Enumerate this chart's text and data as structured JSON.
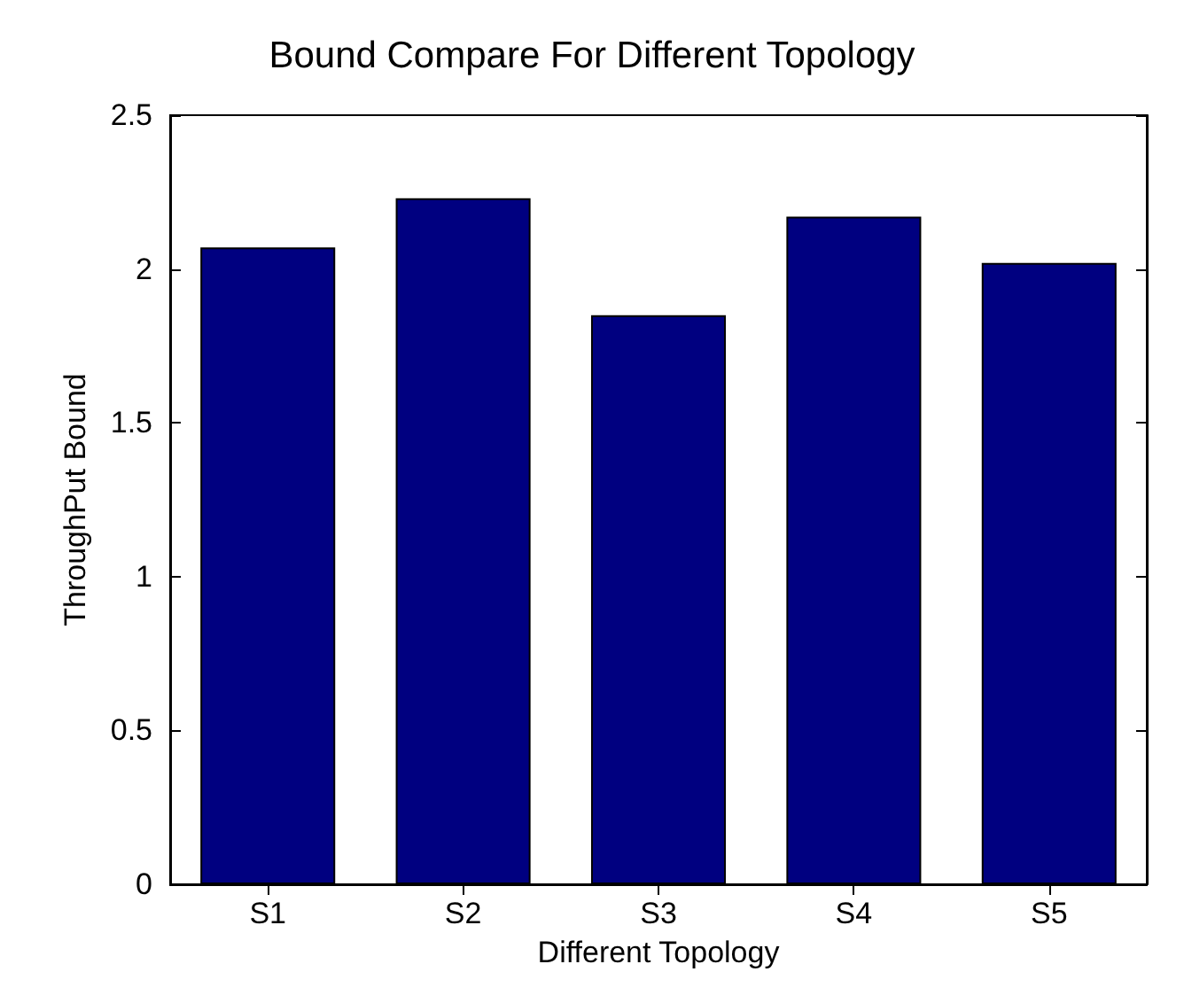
{
  "chart_data": {
    "type": "bar",
    "title": "Bound Compare For Different Topology",
    "xlabel": "Different Topology",
    "ylabel": "ThroughPut Bound",
    "categories": [
      "S1",
      "S2",
      "S3",
      "S4",
      "S5"
    ],
    "values": [
      2.07,
      2.23,
      1.85,
      2.17,
      2.02
    ],
    "color": "#000080",
    "ylim": [
      0,
      2.5
    ],
    "yticks": [
      0,
      0.5,
      1,
      1.5,
      2,
      2.5
    ],
    "grid": false
  }
}
